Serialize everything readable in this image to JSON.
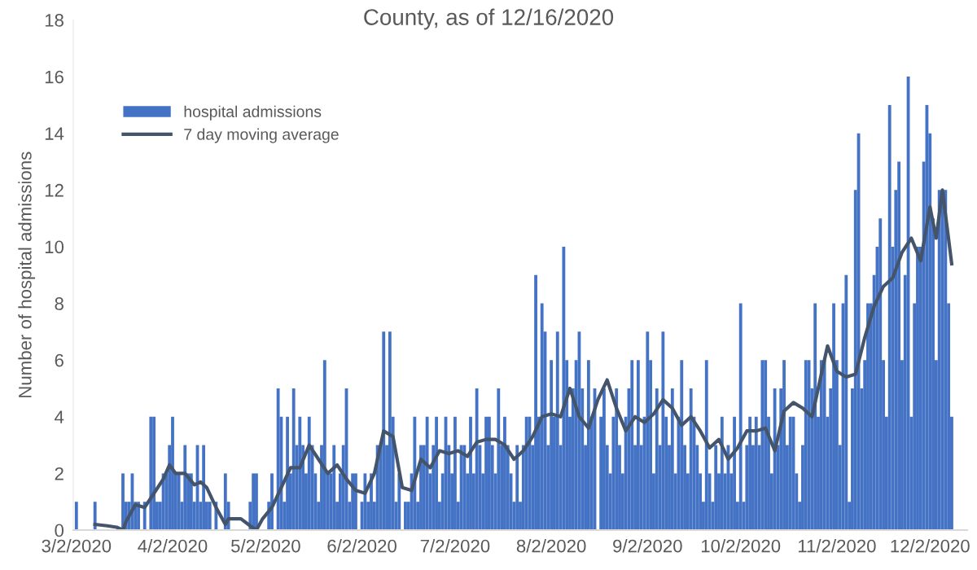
{
  "chart_data": {
    "type": "bar",
    "title": "County, as of 12/16/2020",
    "ylabel": "Number of hospital admissions",
    "x": [
      "2020-03-02",
      "2020-03-03",
      "2020-03-04",
      "2020-03-05",
      "2020-03-06",
      "2020-03-07",
      "2020-03-08",
      "2020-03-09",
      "2020-03-10",
      "2020-03-11",
      "2020-03-12",
      "2020-03-13",
      "2020-03-14",
      "2020-03-15",
      "2020-03-16",
      "2020-03-17",
      "2020-03-18",
      "2020-03-19",
      "2020-03-20",
      "2020-03-21",
      "2020-03-22",
      "2020-03-23",
      "2020-03-24",
      "2020-03-25",
      "2020-03-26",
      "2020-03-27",
      "2020-03-28",
      "2020-03-29",
      "2020-03-30",
      "2020-03-31",
      "2020-04-01",
      "2020-04-02",
      "2020-04-03",
      "2020-04-04",
      "2020-04-05",
      "2020-04-06",
      "2020-04-07",
      "2020-04-08",
      "2020-04-09",
      "2020-04-10",
      "2020-04-11",
      "2020-04-12",
      "2020-04-13",
      "2020-04-14",
      "2020-04-15",
      "2020-04-16",
      "2020-04-17",
      "2020-04-18",
      "2020-04-19",
      "2020-04-20",
      "2020-04-21",
      "2020-04-22",
      "2020-04-23",
      "2020-04-24",
      "2020-04-25",
      "2020-04-26",
      "2020-04-27",
      "2020-04-28",
      "2020-04-29",
      "2020-04-30",
      "2020-05-01",
      "2020-05-02",
      "2020-05-03",
      "2020-05-04",
      "2020-05-05",
      "2020-05-06",
      "2020-05-07",
      "2020-05-08",
      "2020-05-09",
      "2020-05-10",
      "2020-05-11",
      "2020-05-12",
      "2020-05-13",
      "2020-05-14",
      "2020-05-15",
      "2020-05-16",
      "2020-05-17",
      "2020-05-18",
      "2020-05-19",
      "2020-05-20",
      "2020-05-21",
      "2020-05-22",
      "2020-05-23",
      "2020-05-24",
      "2020-05-25",
      "2020-05-26",
      "2020-05-27",
      "2020-05-28",
      "2020-05-29",
      "2020-05-30",
      "2020-05-31",
      "2020-06-01",
      "2020-06-02",
      "2020-06-03",
      "2020-06-04",
      "2020-06-05",
      "2020-06-06",
      "2020-06-07",
      "2020-06-08",
      "2020-06-09",
      "2020-06-10",
      "2020-06-11",
      "2020-06-12",
      "2020-06-13",
      "2020-06-14",
      "2020-06-15",
      "2020-06-16",
      "2020-06-17",
      "2020-06-18",
      "2020-06-19",
      "2020-06-20",
      "2020-06-21",
      "2020-06-22",
      "2020-06-23",
      "2020-06-24",
      "2020-06-25",
      "2020-06-26",
      "2020-06-27",
      "2020-06-28",
      "2020-06-29",
      "2020-06-30",
      "2020-07-01",
      "2020-07-02",
      "2020-07-03",
      "2020-07-04",
      "2020-07-05",
      "2020-07-06",
      "2020-07-07",
      "2020-07-08",
      "2020-07-09",
      "2020-07-10",
      "2020-07-11",
      "2020-07-12",
      "2020-07-13",
      "2020-07-14",
      "2020-07-15",
      "2020-07-16",
      "2020-07-17",
      "2020-07-18",
      "2020-07-19",
      "2020-07-20",
      "2020-07-21",
      "2020-07-22",
      "2020-07-23",
      "2020-07-24",
      "2020-07-25",
      "2020-07-26",
      "2020-07-27",
      "2020-07-28",
      "2020-07-29",
      "2020-07-30",
      "2020-07-31",
      "2020-08-01",
      "2020-08-02",
      "2020-08-03",
      "2020-08-04",
      "2020-08-05",
      "2020-08-06",
      "2020-08-07",
      "2020-08-08",
      "2020-08-09",
      "2020-08-10",
      "2020-08-11",
      "2020-08-12",
      "2020-08-13",
      "2020-08-14",
      "2020-08-15",
      "2020-08-16",
      "2020-08-17",
      "2020-08-18",
      "2020-08-19",
      "2020-08-20",
      "2020-08-21",
      "2020-08-22",
      "2020-08-23",
      "2020-08-24",
      "2020-08-25",
      "2020-08-26",
      "2020-08-27",
      "2020-08-28",
      "2020-08-29",
      "2020-08-30",
      "2020-08-31",
      "2020-09-01",
      "2020-09-02",
      "2020-09-03",
      "2020-09-04",
      "2020-09-05",
      "2020-09-06",
      "2020-09-07",
      "2020-09-08",
      "2020-09-09",
      "2020-09-10",
      "2020-09-11",
      "2020-09-12",
      "2020-09-13",
      "2020-09-14",
      "2020-09-15",
      "2020-09-16",
      "2020-09-17",
      "2020-09-18",
      "2020-09-19",
      "2020-09-20",
      "2020-09-21",
      "2020-09-22",
      "2020-09-23",
      "2020-09-24",
      "2020-09-25",
      "2020-09-26",
      "2020-09-27",
      "2020-09-28",
      "2020-09-29",
      "2020-09-30",
      "2020-10-01",
      "2020-10-02",
      "2020-10-03",
      "2020-10-04",
      "2020-10-05",
      "2020-10-06",
      "2020-10-07",
      "2020-10-08",
      "2020-10-09",
      "2020-10-10",
      "2020-10-11",
      "2020-10-12",
      "2020-10-13",
      "2020-10-14",
      "2020-10-15",
      "2020-10-16",
      "2020-10-17",
      "2020-10-18",
      "2020-10-19",
      "2020-10-20",
      "2020-10-21",
      "2020-10-22",
      "2020-10-23",
      "2020-10-24",
      "2020-10-25",
      "2020-10-26",
      "2020-10-27",
      "2020-10-28",
      "2020-10-29",
      "2020-10-30",
      "2020-10-31",
      "2020-11-01",
      "2020-11-02",
      "2020-11-03",
      "2020-11-04",
      "2020-11-05",
      "2020-11-06",
      "2020-11-07",
      "2020-11-08",
      "2020-11-09",
      "2020-11-10",
      "2020-11-11",
      "2020-11-12",
      "2020-11-13",
      "2020-11-14",
      "2020-11-15",
      "2020-11-16",
      "2020-11-17",
      "2020-11-18",
      "2020-11-19",
      "2020-11-20",
      "2020-11-21",
      "2020-11-22",
      "2020-11-23",
      "2020-11-24",
      "2020-11-25",
      "2020-11-26",
      "2020-11-27",
      "2020-11-28",
      "2020-11-29",
      "2020-11-30",
      "2020-12-01",
      "2020-12-02",
      "2020-12-03",
      "2020-12-04",
      "2020-12-05",
      "2020-12-06",
      "2020-12-07",
      "2020-12-08",
      "2020-12-09"
    ],
    "series": [
      {
        "name": "hospital admissions",
        "color": "#4472c4",
        "values": [
          1,
          0,
          0,
          0,
          0,
          0,
          1,
          0,
          0,
          0,
          0,
          0,
          0,
          0,
          0,
          2,
          1,
          1,
          2,
          1,
          1,
          0,
          1,
          0,
          4,
          4,
          1,
          1,
          2,
          2,
          3,
          4,
          2,
          2,
          1,
          3,
          2,
          2,
          1,
          3,
          1,
          3,
          1,
          1,
          0,
          1,
          0,
          0,
          2,
          1,
          0,
          0,
          0,
          0,
          0,
          0,
          1,
          2,
          2,
          0,
          0,
          0,
          1,
          2,
          0,
          5,
          4,
          1,
          4,
          2,
          5,
          3,
          4,
          3,
          2,
          4,
          3,
          2,
          1,
          3,
          6,
          2,
          2,
          3,
          1,
          2,
          3,
          5,
          1,
          2,
          2,
          0,
          1,
          2,
          1,
          2,
          1,
          3,
          3,
          7,
          3,
          7,
          4,
          1,
          2,
          0,
          1,
          1,
          2,
          4,
          1,
          3,
          3,
          4,
          2,
          3,
          4,
          1,
          2,
          4,
          3,
          2,
          4,
          1,
          3,
          3,
          2,
          4,
          2,
          5,
          3,
          2,
          4,
          4,
          3,
          2,
          5,
          3,
          4,
          3,
          2,
          1,
          3,
          1,
          3,
          4,
          4,
          3,
          9,
          4,
          8,
          7,
          3,
          6,
          4,
          7,
          3,
          10,
          6,
          4,
          5,
          6,
          7,
          5,
          3,
          6,
          4,
          5,
          0,
          4,
          5,
          3,
          2,
          4,
          5,
          3,
          2,
          4,
          5,
          6,
          3,
          6,
          3,
          4,
          7,
          6,
          2,
          5,
          3,
          7,
          4,
          3,
          5,
          2,
          4,
          6,
          3,
          2,
          5,
          4,
          3,
          2,
          1,
          6,
          2,
          1,
          3,
          2,
          4,
          2,
          3,
          2,
          4,
          1,
          8,
          1,
          3,
          4,
          3,
          4,
          3,
          6,
          6,
          4,
          2,
          5,
          3,
          5,
          6,
          3,
          4,
          4,
          2,
          1,
          3,
          6,
          6,
          5,
          8,
          4,
          6,
          6,
          4,
          5,
          8,
          6,
          3,
          8,
          9,
          1,
          5,
          12,
          14,
          5,
          6,
          8,
          8,
          9,
          10,
          11,
          6,
          4,
          15,
          10,
          12,
          13,
          6,
          9,
          16,
          4,
          8,
          10,
          10,
          13,
          15,
          14,
          11,
          6,
          12,
          12,
          12,
          8,
          4
        ]
      },
      {
        "name": "7 day moving average",
        "type": "line",
        "color": "#44546a",
        "x": [
          "2020-03-08",
          "2020-03-12",
          "2020-03-15",
          "2020-03-17",
          "2020-03-18",
          "2020-03-21",
          "2020-03-24",
          "2020-03-27",
          "2020-03-30",
          "2020-04-01",
          "2020-04-03",
          "2020-04-06",
          "2020-04-09",
          "2020-04-11",
          "2020-04-13",
          "2020-04-16",
          "2020-04-19",
          "2020-04-20",
          "2020-04-24",
          "2020-04-27",
          "2020-04-29",
          "2020-05-01",
          "2020-05-04",
          "2020-05-07",
          "2020-05-10",
          "2020-05-13",
          "2020-05-16",
          "2020-05-19",
          "2020-05-22",
          "2020-05-25",
          "2020-05-28",
          "2020-05-31",
          "2020-06-03",
          "2020-06-06",
          "2020-06-09",
          "2020-06-12",
          "2020-06-15",
          "2020-06-18",
          "2020-06-21",
          "2020-06-24",
          "2020-06-27",
          "2020-06-30",
          "2020-07-03",
          "2020-07-06",
          "2020-07-09",
          "2020-07-12",
          "2020-07-15",
          "2020-07-18",
          "2020-07-21",
          "2020-07-24",
          "2020-07-27",
          "2020-07-30",
          "2020-08-02",
          "2020-08-05",
          "2020-08-08",
          "2020-08-11",
          "2020-08-14",
          "2020-08-17",
          "2020-08-20",
          "2020-08-23",
          "2020-08-26",
          "2020-08-29",
          "2020-09-01",
          "2020-09-04",
          "2020-09-07",
          "2020-09-10",
          "2020-09-13",
          "2020-09-16",
          "2020-09-19",
          "2020-09-22",
          "2020-09-25",
          "2020-09-28",
          "2020-10-01",
          "2020-10-04",
          "2020-10-07",
          "2020-10-10",
          "2020-10-13",
          "2020-10-16",
          "2020-10-19",
          "2020-10-22",
          "2020-10-25",
          "2020-10-28",
          "2020-10-30",
          "2020-11-02",
          "2020-11-05",
          "2020-11-08",
          "2020-11-11",
          "2020-11-14",
          "2020-11-17",
          "2020-11-20",
          "2020-11-23",
          "2020-11-26",
          "2020-11-29",
          "2020-12-02",
          "2020-12-04",
          "2020-12-06",
          "2020-12-09"
        ],
        "values": [
          0.2,
          0.15,
          0.1,
          0,
          0.3,
          0.9,
          0.8,
          1.3,
          1.8,
          2.3,
          2.0,
          2.0,
          1.6,
          1.7,
          1.5,
          0.8,
          0.2,
          0.4,
          0.4,
          0.15,
          0,
          0.4,
          0.8,
          1.5,
          2.2,
          2.2,
          3.0,
          2.5,
          2.0,
          2.3,
          1.8,
          1.4,
          1.3,
          2.0,
          3.5,
          3.3,
          1.5,
          1.4,
          2.5,
          2.2,
          2.8,
          2.7,
          2.8,
          2.6,
          3.1,
          3.2,
          3.2,
          3.0,
          2.5,
          2.8,
          3.3,
          4.0,
          4.1,
          4.0,
          5.0,
          4.0,
          3.6,
          4.6,
          5.3,
          4.3,
          3.5,
          4.0,
          3.8,
          4.1,
          4.6,
          4.3,
          3.7,
          4.0,
          3.5,
          2.9,
          3.2,
          2.5,
          2.9,
          3.5,
          3.5,
          3.6,
          2.8,
          4.2,
          4.5,
          4.3,
          4.0,
          5.5,
          6.5,
          5.6,
          5.4,
          5.5,
          6.8,
          7.9,
          8.6,
          8.9,
          9.8,
          10.3,
          9.5,
          11.4,
          10.3,
          12.0,
          9.4
        ]
      }
    ],
    "xlim": [
      "2020-03-01",
      "2020-12-14"
    ],
    "xticks": [
      {
        "value": "2020-03-02",
        "label": "3/2/2020"
      },
      {
        "value": "2020-04-02",
        "label": "4/2/2020"
      },
      {
        "value": "2020-05-02",
        "label": "5/2/2020"
      },
      {
        "value": "2020-06-02",
        "label": "6/2/2020"
      },
      {
        "value": "2020-07-02",
        "label": "7/2/2020"
      },
      {
        "value": "2020-08-02",
        "label": "8/2/2020"
      },
      {
        "value": "2020-09-02",
        "label": "9/2/2020"
      },
      {
        "value": "2020-10-02",
        "label": "10/2/2020"
      },
      {
        "value": "2020-11-02",
        "label": "11/2/2020"
      },
      {
        "value": "2020-12-02",
        "label": "12/2/2020"
      }
    ],
    "ylim": [
      0,
      18
    ],
    "yticks": [
      0,
      2,
      4,
      6,
      8,
      10,
      12,
      14,
      16,
      18
    ],
    "legend": "top left"
  }
}
